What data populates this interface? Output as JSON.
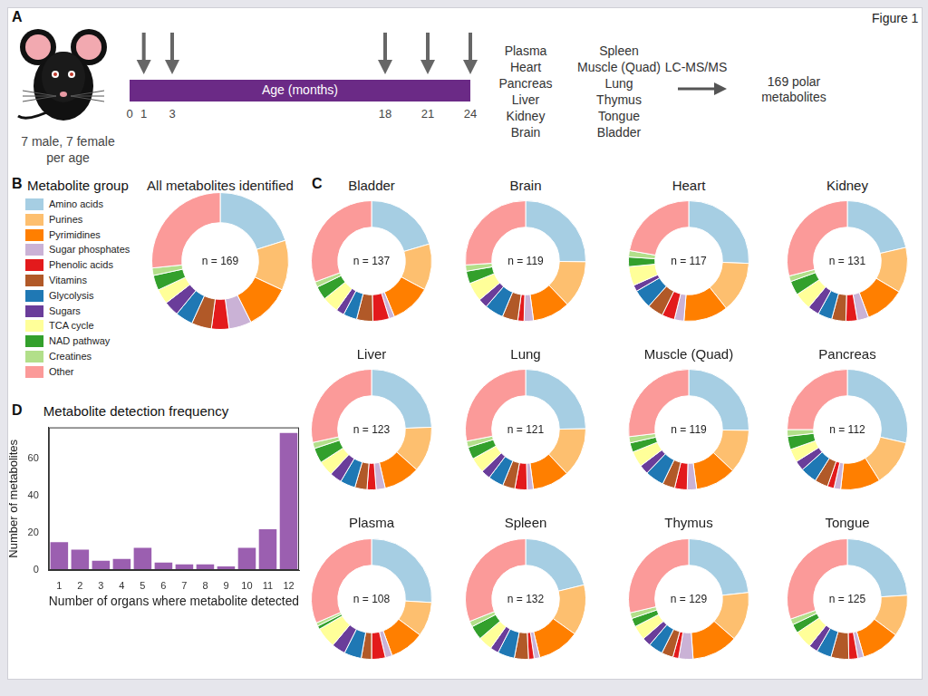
{
  "figure_label": "Figure 1",
  "panel_a": {
    "letter": "A",
    "timeline_label": "Age (months)",
    "ages": [
      0,
      1,
      3,
      18,
      21,
      24
    ],
    "sampled_ages": [
      1,
      3,
      18,
      21,
      24
    ],
    "subjects": [
      "7 male, 7 female",
      "per age"
    ],
    "organs": [
      [
        "Plasma",
        "Heart",
        "Pancreas",
        "Liver",
        "Kidney",
        "Brain"
      ],
      [
        "Spleen",
        "Muscle (Quad)",
        "Lung",
        "Thymus",
        "Tongue",
        "Bladder"
      ]
    ],
    "method": "LC-MS/MS",
    "result": [
      "169 polar",
      "metabolites"
    ]
  },
  "panel_b": {
    "letter": "B",
    "legend_title": "Metabolite group"
  },
  "panel_c": {
    "letter": "C"
  },
  "panel_d": {
    "letter": "D"
  },
  "chart_data": [
    {
      "type": "doughnut",
      "title": "All metabolites identified",
      "annotation": "n = 169",
      "categories": [
        "Amino acids",
        "Purines",
        "Pyrimidines",
        "Sugar phosphates",
        "Phenolic acids",
        "Vitamins",
        "Glycolysis",
        "Sugars",
        "TCA cycle",
        "NAD pathway",
        "Creatines",
        "Other"
      ],
      "values": [
        34,
        20,
        18,
        9,
        7,
        8,
        7,
        6,
        6,
        6,
        3,
        45
      ],
      "colors": [
        "#a6cee3",
        "#fdbf6f",
        "#ff7f00",
        "#cab2d6",
        "#e31a1c",
        "#b15928",
        "#1f78b4",
        "#6a3d9a",
        "#ffff99",
        "#33a02c",
        "#b2df8a",
        "#fb9a99"
      ]
    },
    {
      "type": "doughnut",
      "title": "Bladder",
      "annotation": "n = 137",
      "categories": [
        "Amino acids",
        "Purines",
        "Pyrimidines",
        "Sugar phosphates",
        "Phenolic acids",
        "Vitamins",
        "Glycolysis",
        "Sugars",
        "TCA cycle",
        "NAD pathway",
        "Creatines",
        "Other"
      ],
      "values": [
        28,
        17,
        15,
        2,
        6,
        6,
        5,
        3,
        6,
        5,
        2,
        42
      ],
      "colors": [
        "#a6cee3",
        "#fdbf6f",
        "#ff7f00",
        "#cab2d6",
        "#e31a1c",
        "#b15928",
        "#1f78b4",
        "#6a3d9a",
        "#ffff99",
        "#33a02c",
        "#b2df8a",
        "#fb9a99"
      ]
    },
    {
      "type": "doughnut",
      "title": "Brain",
      "annotation": "n = 119",
      "categories": [
        "Amino acids",
        "Purines",
        "Pyrimidines",
        "Sugar phosphates",
        "Phenolic acids",
        "Vitamins",
        "Glycolysis",
        "Sugars",
        "TCA cycle",
        "NAD pathway",
        "Creatines",
        "Other"
      ],
      "values": [
        30,
        15,
        12,
        3,
        2,
        5,
        6,
        3,
        6,
        4,
        2,
        31
      ],
      "colors": [
        "#a6cee3",
        "#fdbf6f",
        "#ff7f00",
        "#cab2d6",
        "#e31a1c",
        "#b15928",
        "#1f78b4",
        "#6a3d9a",
        "#ffff99",
        "#33a02c",
        "#b2df8a",
        "#fb9a99"
      ]
    },
    {
      "type": "doughnut",
      "title": "Heart",
      "annotation": "n = 117",
      "categories": [
        "Amino acids",
        "Purines",
        "Pyrimidines",
        "Sugar phosphates",
        "Phenolic acids",
        "Vitamins",
        "Glycolysis",
        "Sugars",
        "TCA cycle",
        "NAD pathway",
        "Creatines",
        "Other"
      ],
      "values": [
        30,
        16,
        14,
        3,
        4,
        5,
        6,
        2,
        6,
        3,
        2,
        26
      ],
      "colors": [
        "#a6cee3",
        "#fdbf6f",
        "#ff7f00",
        "#cab2d6",
        "#e31a1c",
        "#b15928",
        "#1f78b4",
        "#6a3d9a",
        "#ffff99",
        "#33a02c",
        "#b2df8a",
        "#fb9a99"
      ]
    },
    {
      "type": "doughnut",
      "title": "Kidney",
      "annotation": "n = 131",
      "categories": [
        "Amino acids",
        "Purines",
        "Pyrimidines",
        "Sugar phosphates",
        "Phenolic acids",
        "Vitamins",
        "Glycolysis",
        "Sugars",
        "TCA cycle",
        "NAD pathway",
        "Creatines",
        "Other"
      ],
      "values": [
        28,
        16,
        14,
        4,
        4,
        5,
        5,
        4,
        6,
        5,
        2,
        38
      ],
      "colors": [
        "#a6cee3",
        "#fdbf6f",
        "#ff7f00",
        "#cab2d6",
        "#e31a1c",
        "#b15928",
        "#1f78b4",
        "#6a3d9a",
        "#ffff99",
        "#33a02c",
        "#b2df8a",
        "#fb9a99"
      ]
    },
    {
      "type": "doughnut",
      "title": "Liver",
      "annotation": "n = 123",
      "categories": [
        "Amino acids",
        "Purines",
        "Pyrimidines",
        "Sugar phosphates",
        "Phenolic acids",
        "Vitamins",
        "Glycolysis",
        "Sugars",
        "TCA cycle",
        "NAD pathway",
        "Creatines",
        "Other"
      ],
      "values": [
        30,
        15,
        12,
        3,
        3,
        4,
        5,
        4,
        5,
        5,
        2,
        35
      ],
      "colors": [
        "#a6cee3",
        "#fdbf6f",
        "#ff7f00",
        "#cab2d6",
        "#e31a1c",
        "#b15928",
        "#1f78b4",
        "#6a3d9a",
        "#ffff99",
        "#33a02c",
        "#b2df8a",
        "#fb9a99"
      ]
    },
    {
      "type": "doughnut",
      "title": "Lung",
      "annotation": "n = 121",
      "categories": [
        "Amino acids",
        "Purines",
        "Pyrimidines",
        "Sugar phosphates",
        "Phenolic acids",
        "Vitamins",
        "Glycolysis",
        "Sugars",
        "TCA cycle",
        "NAD pathway",
        "Creatines",
        "Other"
      ],
      "values": [
        30,
        16,
        12,
        2,
        4,
        4,
        5,
        3,
        5,
        4,
        2,
        34
      ],
      "colors": [
        "#a6cee3",
        "#fdbf6f",
        "#ff7f00",
        "#cab2d6",
        "#e31a1c",
        "#b15928",
        "#1f78b4",
        "#6a3d9a",
        "#ffff99",
        "#33a02c",
        "#b2df8a",
        "#fb9a99"
      ]
    },
    {
      "type": "doughnut",
      "title": "Muscle (Quad)",
      "annotation": "n = 119",
      "categories": [
        "Amino acids",
        "Purines",
        "Pyrimidines",
        "Sugar phosphates",
        "Phenolic acids",
        "Vitamins",
        "Glycolysis",
        "Sugars",
        "TCA cycle",
        "NAD pathway",
        "Creatines",
        "Other"
      ],
      "values": [
        30,
        14,
        13,
        3,
        4,
        4,
        6,
        3,
        5,
        3,
        2,
        32
      ],
      "colors": [
        "#a6cee3",
        "#fdbf6f",
        "#ff7f00",
        "#cab2d6",
        "#e31a1c",
        "#b15928",
        "#1f78b4",
        "#6a3d9a",
        "#ffff99",
        "#33a02c",
        "#b2df8a",
        "#fb9a99"
      ]
    },
    {
      "type": "doughnut",
      "title": "Pancreas",
      "annotation": "n = 112",
      "categories": [
        "Amino acids",
        "Purines",
        "Pyrimidines",
        "Sugar phosphates",
        "Phenolic acids",
        "Vitamins",
        "Glycolysis",
        "Sugars",
        "TCA cycle",
        "NAD pathway",
        "Creatines",
        "Other"
      ],
      "values": [
        32,
        14,
        12,
        2,
        2,
        4,
        5,
        3,
        4,
        4,
        2,
        28
      ],
      "colors": [
        "#a6cee3",
        "#fdbf6f",
        "#ff7f00",
        "#cab2d6",
        "#e31a1c",
        "#b15928",
        "#1f78b4",
        "#6a3d9a",
        "#ffff99",
        "#33a02c",
        "#b2df8a",
        "#fb9a99"
      ]
    },
    {
      "type": "doughnut",
      "title": "Plasma",
      "annotation": "n = 108",
      "categories": [
        "Amino acids",
        "Purines",
        "Pyrimidines",
        "Sugar phosphates",
        "Phenolic acids",
        "Vitamins",
        "Glycolysis",
        "Sugars",
        "TCA cycle",
        "NAD pathway",
        "Creatines",
        "Other"
      ],
      "values": [
        28,
        10,
        10,
        2,
        4,
        3,
        5,
        4,
        6,
        1,
        1,
        34
      ],
      "colors": [
        "#a6cee3",
        "#fdbf6f",
        "#ff7f00",
        "#cab2d6",
        "#e31a1c",
        "#b15928",
        "#1f78b4",
        "#6a3d9a",
        "#ffff99",
        "#33a02c",
        "#b2df8a",
        "#fb9a99"
      ]
    },
    {
      "type": "doughnut",
      "title": "Spleen",
      "annotation": "n = 132",
      "categories": [
        "Amino acids",
        "Purines",
        "Pyrimidines",
        "Sugar phosphates",
        "Phenolic acids",
        "Vitamins",
        "Glycolysis",
        "Sugars",
        "TCA cycle",
        "NAD pathway",
        "Creatines",
        "Other"
      ],
      "values": [
        28,
        18,
        15,
        2,
        2,
        5,
        6,
        3,
        5,
        5,
        2,
        41
      ],
      "colors": [
        "#a6cee3",
        "#fdbf6f",
        "#ff7f00",
        "#cab2d6",
        "#e31a1c",
        "#b15928",
        "#1f78b4",
        "#6a3d9a",
        "#ffff99",
        "#33a02c",
        "#b2df8a",
        "#fb9a99"
      ]
    },
    {
      "type": "doughnut",
      "title": "Thymus",
      "annotation": "n = 129",
      "categories": [
        "Amino acids",
        "Purines",
        "Pyrimidines",
        "Sugar phosphates",
        "Phenolic acids",
        "Vitamins",
        "Glycolysis",
        "Sugars",
        "TCA cycle",
        "NAD pathway",
        "Creatines",
        "Other"
      ],
      "values": [
        30,
        17,
        16,
        5,
        2,
        4,
        5,
        3,
        5,
        3,
        2,
        37
      ],
      "colors": [
        "#a6cee3",
        "#fdbf6f",
        "#ff7f00",
        "#cab2d6",
        "#e31a1c",
        "#b15928",
        "#1f78b4",
        "#6a3d9a",
        "#ffff99",
        "#33a02c",
        "#b2df8a",
        "#fb9a99"
      ]
    },
    {
      "type": "doughnut",
      "title": "Tongue",
      "annotation": "n = 125",
      "categories": [
        "Amino acids",
        "Purines",
        "Pyrimidines",
        "Sugar phosphates",
        "Phenolic acids",
        "Vitamins",
        "Glycolysis",
        "Sugars",
        "TCA cycle",
        "NAD pathway",
        "Creatines",
        "Other"
      ],
      "values": [
        30,
        14,
        13,
        2,
        3,
        6,
        5,
        3,
        6,
        3,
        2,
        38
      ],
      "colors": [
        "#a6cee3",
        "#fdbf6f",
        "#ff7f00",
        "#cab2d6",
        "#e31a1c",
        "#b15928",
        "#1f78b4",
        "#6a3d9a",
        "#ffff99",
        "#33a02c",
        "#b2df8a",
        "#fb9a99"
      ]
    },
    {
      "type": "bar",
      "title": "Metabolite detection frequency",
      "x_label": "Number of organs where metabolite detected",
      "y_label": "Number of metabolites",
      "categories": [
        "1",
        "2",
        "3",
        "4",
        "5",
        "6",
        "7",
        "8",
        "9",
        "10",
        "11",
        "12"
      ],
      "values": [
        15,
        11,
        5,
        6,
        12,
        4,
        3,
        3,
        2,
        12,
        22,
        74
      ],
      "color": "#9b5fb0",
      "ylim": [
        0,
        77
      ],
      "yticks": [
        0,
        20,
        40,
        60
      ],
      "grid": false
    }
  ]
}
